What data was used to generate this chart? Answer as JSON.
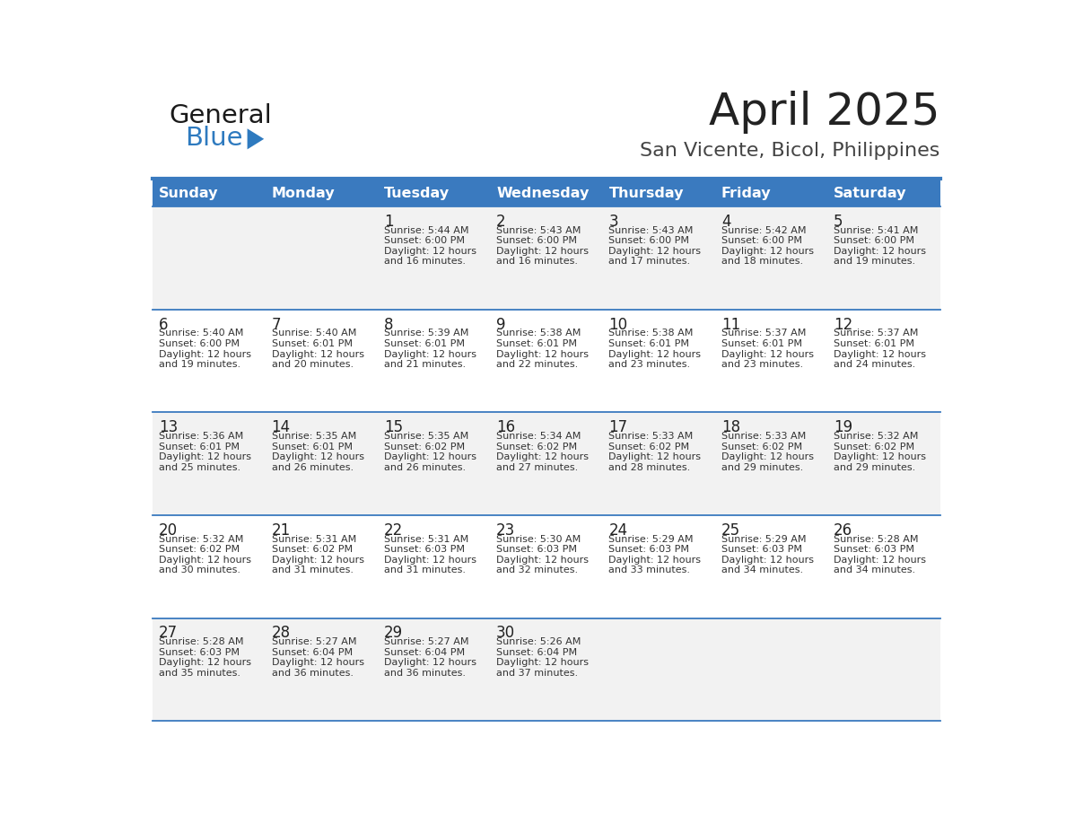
{
  "title": "April 2025",
  "subtitle": "San Vicente, Bicol, Philippines",
  "header_bg_color": "#3a7abf",
  "header_text_color": "#ffffff",
  "row_bg_even": "#f2f2f2",
  "row_bg_odd": "#ffffff",
  "day_headers": [
    "Sunday",
    "Monday",
    "Tuesday",
    "Wednesday",
    "Thursday",
    "Friday",
    "Saturday"
  ],
  "separator_color": "#3a7abf",
  "title_color": "#222222",
  "subtitle_color": "#444444",
  "day_number_color": "#222222",
  "text_color": "#333333",
  "calendar": [
    [
      {
        "day": null,
        "sunrise": null,
        "sunset": null,
        "daylight_min": null
      },
      {
        "day": null,
        "sunrise": null,
        "sunset": null,
        "daylight_min": null
      },
      {
        "day": 1,
        "sunrise": "5:44 AM",
        "sunset": "6:00 PM",
        "daylight_min": 16
      },
      {
        "day": 2,
        "sunrise": "5:43 AM",
        "sunset": "6:00 PM",
        "daylight_min": 16
      },
      {
        "day": 3,
        "sunrise": "5:43 AM",
        "sunset": "6:00 PM",
        "daylight_min": 17
      },
      {
        "day": 4,
        "sunrise": "5:42 AM",
        "sunset": "6:00 PM",
        "daylight_min": 18
      },
      {
        "day": 5,
        "sunrise": "5:41 AM",
        "sunset": "6:00 PM",
        "daylight_min": 19
      }
    ],
    [
      {
        "day": 6,
        "sunrise": "5:40 AM",
        "sunset": "6:00 PM",
        "daylight_min": 19
      },
      {
        "day": 7,
        "sunrise": "5:40 AM",
        "sunset": "6:01 PM",
        "daylight_min": 20
      },
      {
        "day": 8,
        "sunrise": "5:39 AM",
        "sunset": "6:01 PM",
        "daylight_min": 21
      },
      {
        "day": 9,
        "sunrise": "5:38 AM",
        "sunset": "6:01 PM",
        "daylight_min": 22
      },
      {
        "day": 10,
        "sunrise": "5:38 AM",
        "sunset": "6:01 PM",
        "daylight_min": 23
      },
      {
        "day": 11,
        "sunrise": "5:37 AM",
        "sunset": "6:01 PM",
        "daylight_min": 23
      },
      {
        "day": 12,
        "sunrise": "5:37 AM",
        "sunset": "6:01 PM",
        "daylight_min": 24
      }
    ],
    [
      {
        "day": 13,
        "sunrise": "5:36 AM",
        "sunset": "6:01 PM",
        "daylight_min": 25
      },
      {
        "day": 14,
        "sunrise": "5:35 AM",
        "sunset": "6:01 PM",
        "daylight_min": 26
      },
      {
        "day": 15,
        "sunrise": "5:35 AM",
        "sunset": "6:02 PM",
        "daylight_min": 26
      },
      {
        "day": 16,
        "sunrise": "5:34 AM",
        "sunset": "6:02 PM",
        "daylight_min": 27
      },
      {
        "day": 17,
        "sunrise": "5:33 AM",
        "sunset": "6:02 PM",
        "daylight_min": 28
      },
      {
        "day": 18,
        "sunrise": "5:33 AM",
        "sunset": "6:02 PM",
        "daylight_min": 29
      },
      {
        "day": 19,
        "sunrise": "5:32 AM",
        "sunset": "6:02 PM",
        "daylight_min": 29
      }
    ],
    [
      {
        "day": 20,
        "sunrise": "5:32 AM",
        "sunset": "6:02 PM",
        "daylight_min": 30
      },
      {
        "day": 21,
        "sunrise": "5:31 AM",
        "sunset": "6:02 PM",
        "daylight_min": 31
      },
      {
        "day": 22,
        "sunrise": "5:31 AM",
        "sunset": "6:03 PM",
        "daylight_min": 31
      },
      {
        "day": 23,
        "sunrise": "5:30 AM",
        "sunset": "6:03 PM",
        "daylight_min": 32
      },
      {
        "day": 24,
        "sunrise": "5:29 AM",
        "sunset": "6:03 PM",
        "daylight_min": 33
      },
      {
        "day": 25,
        "sunrise": "5:29 AM",
        "sunset": "6:03 PM",
        "daylight_min": 34
      },
      {
        "day": 26,
        "sunrise": "5:28 AM",
        "sunset": "6:03 PM",
        "daylight_min": 34
      }
    ],
    [
      {
        "day": 27,
        "sunrise": "5:28 AM",
        "sunset": "6:03 PM",
        "daylight_min": 35
      },
      {
        "day": 28,
        "sunrise": "5:27 AM",
        "sunset": "6:04 PM",
        "daylight_min": 36
      },
      {
        "day": 29,
        "sunrise": "5:27 AM",
        "sunset": "6:04 PM",
        "daylight_min": 36
      },
      {
        "day": 30,
        "sunrise": "5:26 AM",
        "sunset": "6:04 PM",
        "daylight_min": 37
      },
      {
        "day": null,
        "sunrise": null,
        "sunset": null,
        "daylight_min": null
      },
      {
        "day": null,
        "sunrise": null,
        "sunset": null,
        "daylight_min": null
      },
      {
        "day": null,
        "sunrise": null,
        "sunset": null,
        "daylight_min": null
      }
    ]
  ],
  "logo_general_color": "#1a1a1a",
  "logo_blue_color": "#2e7abf",
  "logo_triangle_color": "#2e7abf"
}
